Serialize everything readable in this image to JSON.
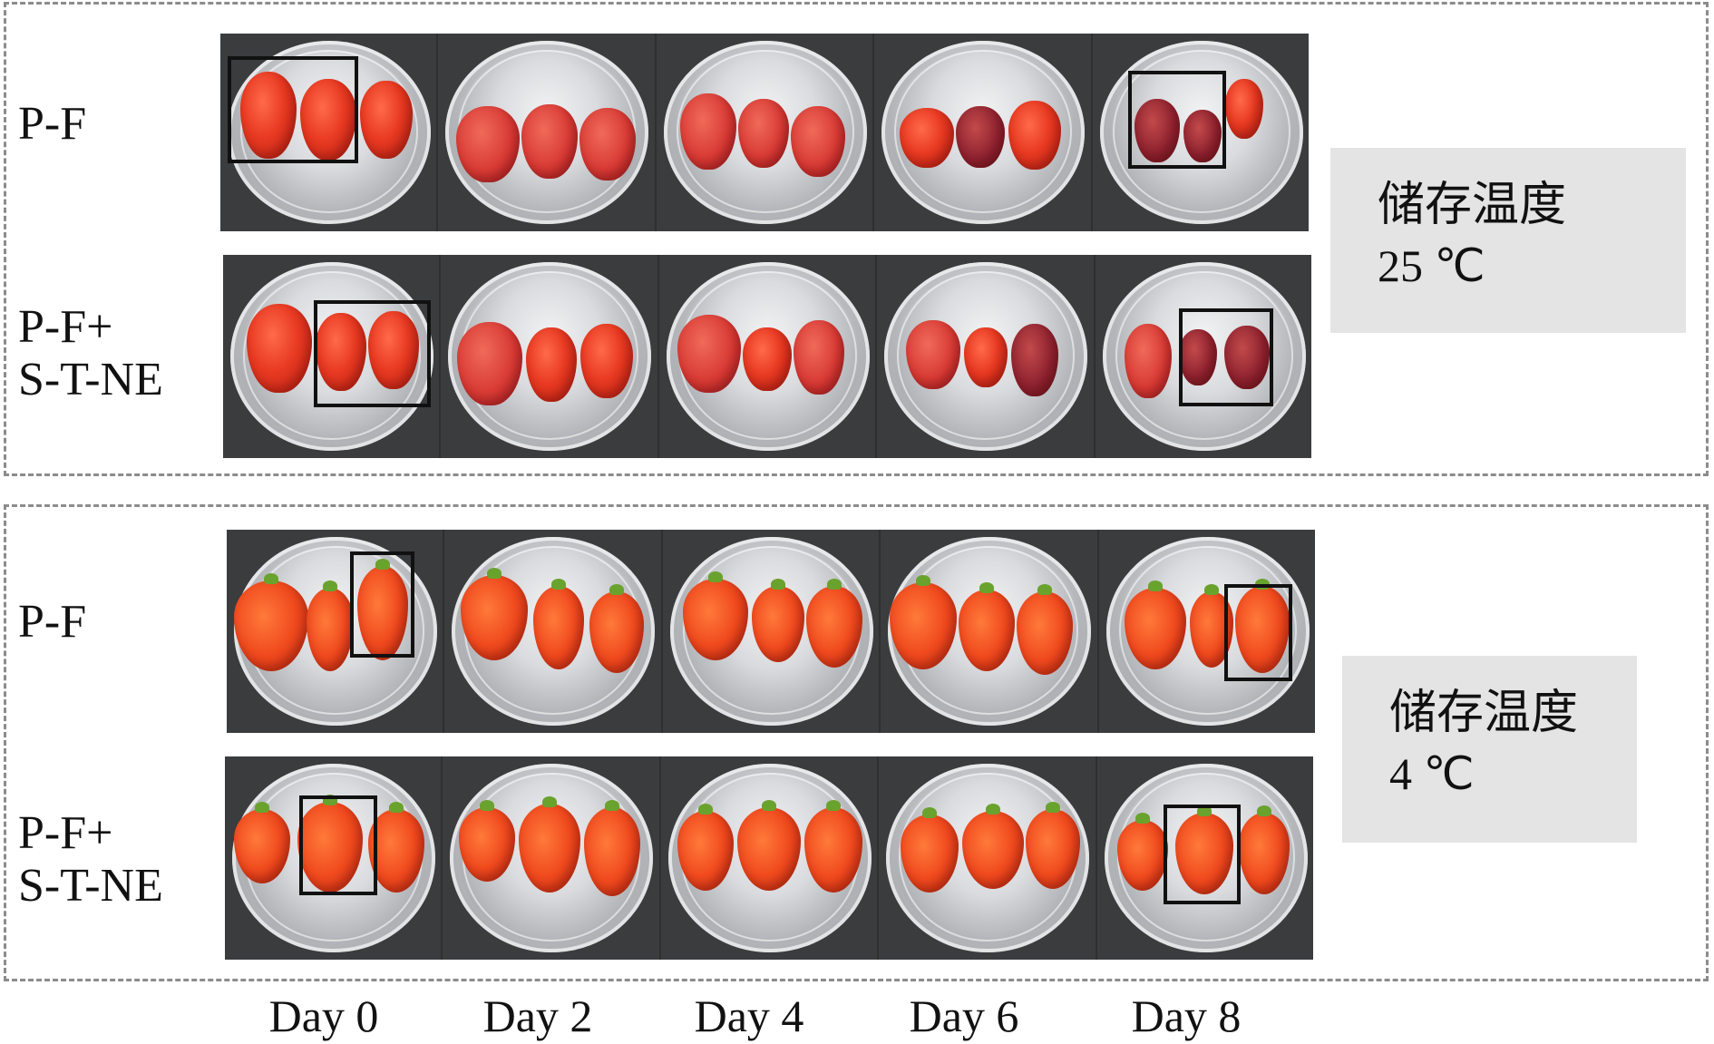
{
  "groups": [
    {
      "temp_title": "储存温度",
      "temp_value": "25 ℃",
      "rows": [
        {
          "label": "P-F"
        },
        {
          "label": "P-F+\nS-T-NE"
        }
      ]
    },
    {
      "temp_title": "储存温度",
      "temp_value": "4 ℃",
      "rows": [
        {
          "label": "P-F"
        },
        {
          "label": "P-F+\nS-T-NE"
        }
      ]
    }
  ],
  "days": [
    "Day 0",
    "Day 2",
    "Day 4",
    "Day 6",
    "Day 8"
  ],
  "colors": {
    "background": "#3d3e40",
    "fruit_fresh": "#e83a22",
    "fruit_spoiled": "#8e2230",
    "info_box": "#e4e4e4",
    "dashed_border": "#8c8c8c"
  }
}
